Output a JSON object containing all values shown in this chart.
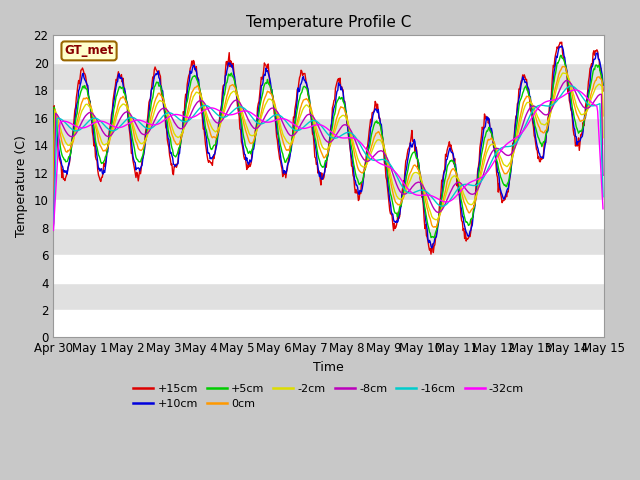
{
  "title": "Temperature Profile C",
  "xlabel": "Time",
  "ylabel": "Temperature (C)",
  "ylim": [
    0,
    22
  ],
  "yticks": [
    0,
    2,
    4,
    6,
    8,
    10,
    12,
    14,
    16,
    18,
    20,
    22
  ],
  "date_labels": [
    "Apr 30",
    "May 1",
    "May 2",
    "May 3",
    "May 4",
    "May 5",
    "May 6",
    "May 7",
    "May 8",
    "May 9",
    "May 10",
    "May 11",
    "May 12",
    "May 13",
    "May 14",
    "May 15"
  ],
  "legend_entries": [
    "+15cm",
    "+10cm",
    "+5cm",
    "0cm",
    "-2cm",
    "-8cm",
    "-16cm",
    "-32cm"
  ],
  "colors": {
    "+15cm": "#dd0000",
    "+10cm": "#0000dd",
    "+5cm": "#00cc00",
    "0cm": "#ff9900",
    "-2cm": "#dddd00",
    "-8cm": "#bb00bb",
    "-16cm": "#00cccc",
    "-32cm": "#ff00ff"
  },
  "gt_met_label": "GT_met",
  "title_fontsize": 11,
  "axis_label_fontsize": 9,
  "tick_fontsize": 8.5
}
